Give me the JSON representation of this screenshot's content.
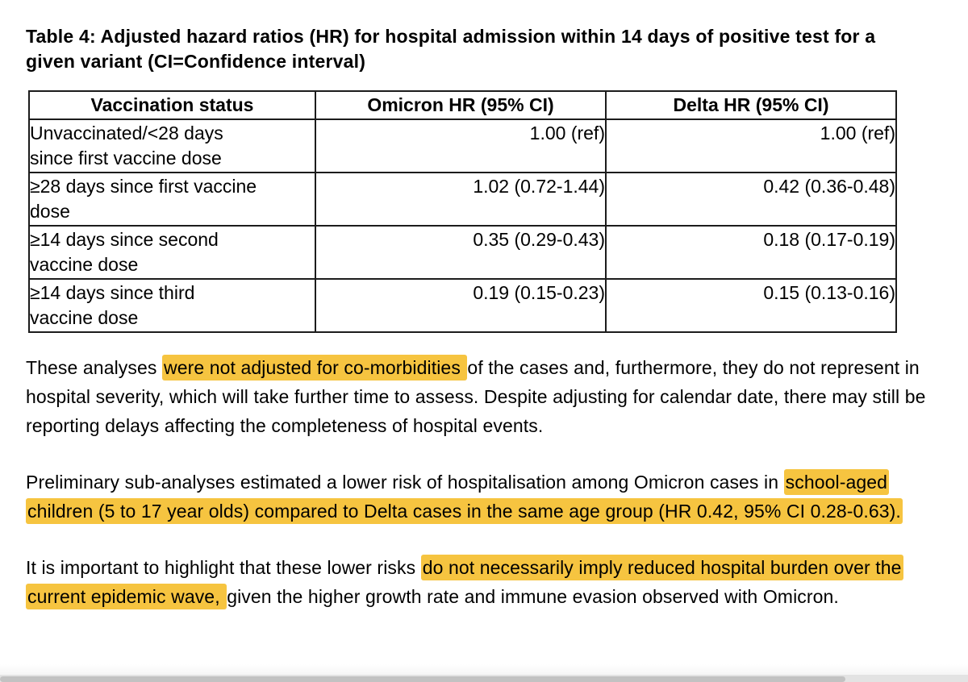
{
  "page": {
    "background_color": "#ffffff",
    "text_color": "#000000",
    "highlight_color": "#f6c440",
    "table_border_color": "#1c1c1c"
  },
  "document": {
    "title": "Table 4: Adjusted hazard ratios (HR) for hospital admission within 14 days of positive test for a given variant (CI=Confidence interval)",
    "table": {
      "headers": [
        "Vaccination status",
        "Omicron HR (95% CI)",
        "Delta HR (95% CI)"
      ],
      "rows": [
        {
          "status": "Unvaccinated/<28 days since first vaccine dose",
          "omicron_hr": "1.00 (ref)",
          "delta_hr": "1.00 (ref)"
        },
        {
          "status": "≥28 days since first vaccine dose",
          "omicron_hr": "1.02 (0.72-1.44)",
          "delta_hr": "0.42 (0.36-0.48)"
        },
        {
          "status": "≥14 days since second vaccine dose",
          "omicron_hr": "0.35 (0.29-0.43)",
          "delta_hr": "0.18 (0.17-0.19)"
        },
        {
          "status": "≥14 days since third vaccine dose",
          "omicron_hr": "0.19 (0.15-0.23)",
          "delta_hr": "0.15 (0.13-0.16)"
        }
      ]
    },
    "paragraphs": [
      {
        "segments": [
          {
            "text": "These analyses ",
            "highlight": false
          },
          {
            "text": "were not adjusted for co-morbidities ",
            "highlight": true
          },
          {
            "text": "of the cases and, furthermore, they do not represent in hospital severity, which will take further time to assess. Despite adjusting for calendar date, there may still be reporting delays affecting the completeness of hospital events.",
            "highlight": false
          }
        ]
      },
      {
        "segments": [
          {
            "text": "Preliminary sub-analyses estimated a lower risk of hospitalisation among Omicron cases in ",
            "highlight": false
          },
          {
            "text": "school-aged children (5 to 17 year olds) compared to Delta cases in the same age group (HR 0.42, 95% CI 0.28-0.63).",
            "highlight": true
          }
        ]
      },
      {
        "segments": [
          {
            "text": "It is important to highlight that these lower risks ",
            "highlight": false
          },
          {
            "text": "do not necessarily imply reduced hospital burden over the current epidemic wave, ",
            "highlight": true
          },
          {
            "text": "given the higher growth rate and immune evasion observed with Omicron.",
            "highlight": false
          }
        ]
      }
    ]
  }
}
